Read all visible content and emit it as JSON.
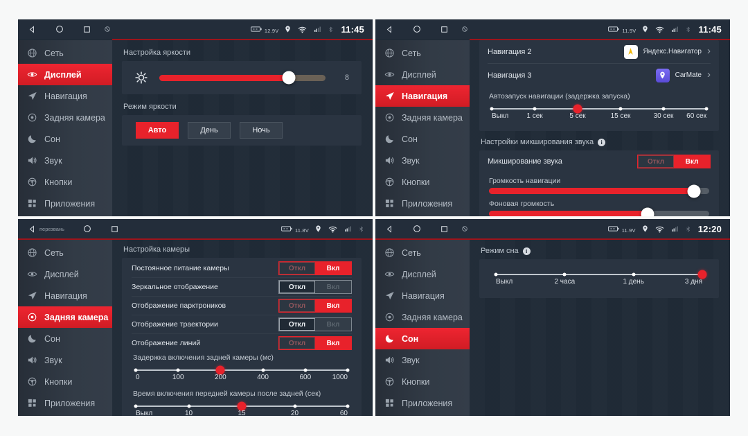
{
  "colors": {
    "accent_red": "#e8222b",
    "screen_bg": "#202b37",
    "panel_bg": "#2a3441",
    "sidebar_selected_red": "#e02129",
    "statusbar_underline_red": "#9e141b"
  },
  "sidebar": {
    "items": [
      {
        "label": "Сеть",
        "icon": "globe-icon"
      },
      {
        "label": "Дисплей",
        "icon": "eye-icon"
      },
      {
        "label": "Навигация",
        "icon": "nav-arrow-icon"
      },
      {
        "label": "Задняя камера",
        "icon": "camera-icon"
      },
      {
        "label": "Сон",
        "icon": "moon-icon"
      },
      {
        "label": "Звук",
        "icon": "speaker-icon"
      },
      {
        "label": "Кнопки",
        "icon": "steering-wheel-icon"
      },
      {
        "label": "Приложения",
        "icon": "apps-grid-icon"
      }
    ]
  },
  "screens": {
    "display": {
      "selected_sidebar": "Дисплей",
      "status": {
        "voltage": "12.9V",
        "time": "11:45"
      },
      "brightness": {
        "section_label": "Настройка яркости",
        "value": "8",
        "percent": 78
      },
      "mode": {
        "section_label": "Режим яркости",
        "buttons": [
          "Авто",
          "День",
          "Ночь"
        ],
        "selected": "Авто"
      }
    },
    "navigation": {
      "selected_sidebar": "Навигация",
      "status": {
        "voltage": "11.9V",
        "time": "11:45"
      },
      "nav2": {
        "label": "Навигация 2",
        "app": "Яндекс.Навигатор"
      },
      "nav3": {
        "label": "Навигация 3",
        "app": "CarMate"
      },
      "autostart": {
        "label": "Автозапуск навигации (задержка запуска)",
        "options": [
          "Выкл",
          "1 сек",
          "5 сек",
          "15 сек",
          "30 сек",
          "60 сек"
        ],
        "selected": "5 сек"
      },
      "mixing": {
        "section_label": "Настройки микширования звука",
        "toggle_label": "Микширование звука",
        "off_label": "Откл",
        "on_label": "Вкл",
        "state": "Вкл",
        "nav_volume_label": "Громкость навигации",
        "nav_volume_percent": 93,
        "bg_volume_label": "Фоновая громкость",
        "bg_volume_percent": 72
      }
    },
    "camera": {
      "selected_sidebar": "Задняя камера",
      "status": {
        "voltage": "11.8V",
        "back_text": "перезвань"
      },
      "section_label": "Настройка камеры",
      "off_label": "Откл",
      "on_label": "Вкл",
      "toggles": [
        {
          "label": "Постоянное питание камеры",
          "state": "Вкл"
        },
        {
          "label": "Зеркальное отображение",
          "state": "Откл"
        },
        {
          "label": "Отображение парктроников",
          "state": "Вкл"
        },
        {
          "label": "Отображение траектории",
          "state": "Откл"
        },
        {
          "label": "Отображение линий",
          "state": "Вкл"
        }
      ],
      "rear_delay": {
        "label": "Задержка включения задней камеры (мс)",
        "options": [
          "0",
          "100",
          "200",
          "400",
          "600",
          "1000"
        ],
        "selected": "200"
      },
      "front_delay": {
        "label": "Время включения передней камеры после задней (сек)",
        "options": [
          "Выкл",
          "10",
          "15",
          "20",
          "60"
        ],
        "selected": "15"
      }
    },
    "sleep": {
      "selected_sidebar": "Сон",
      "status": {
        "voltage": "11.9V",
        "time": "12:20"
      },
      "sleep_mode": {
        "section_label": "Режим сна",
        "options": [
          "Выкл",
          "2 часа",
          "1 день",
          "3 дня"
        ],
        "selected": "3 дня"
      }
    }
  }
}
